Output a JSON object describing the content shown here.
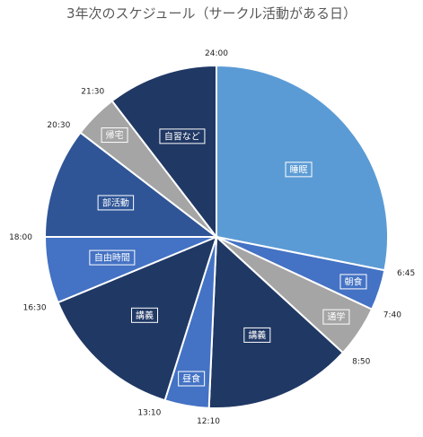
{
  "chart_data": {
    "type": "pie",
    "title": "3年次のスケジュール（サークル活動がある日）",
    "unit": "hours of day",
    "slices": [
      {
        "label": "睡眠",
        "start": "0:00",
        "end": "6:45",
        "hours": 6.75,
        "color": "#5b9bd5"
      },
      {
        "label": "朝食",
        "start": "6:45",
        "end": "7:40",
        "hours": 0.917,
        "color": "#4472c4"
      },
      {
        "label": "通学",
        "start": "7:40",
        "end": "8:50",
        "hours": 1.167,
        "color": "#a5a5a5"
      },
      {
        "label": "講義",
        "start": "8:50",
        "end": "12:10",
        "hours": 3.333,
        "color": "#203864"
      },
      {
        "label": "昼食",
        "start": "12:10",
        "end": "13:10",
        "hours": 1.0,
        "color": "#4472c4"
      },
      {
        "label": "講義",
        "start": "13:10",
        "end": "16:30",
        "hours": 3.333,
        "color": "#203864"
      },
      {
        "label": "自由時間",
        "start": "16:30",
        "end": "18:00",
        "hours": 1.5,
        "color": "#4472c4"
      },
      {
        "label": "部活動",
        "start": "18:00",
        "end": "20:30",
        "hours": 2.5,
        "color": "#2f5597"
      },
      {
        "label": "帰宅",
        "start": "20:30",
        "end": "21:30",
        "hours": 1.0,
        "color": "#a5a5a5"
      },
      {
        "label": "自習など",
        "start": "21:30",
        "end": "24:00",
        "hours": 2.5,
        "color": "#203864"
      }
    ],
    "time_labels": [
      "24:00",
      "6:45",
      "7:40",
      "8:50",
      "12:10",
      "13:10",
      "16:30",
      "18:00",
      "20:30",
      "21:30"
    ]
  }
}
